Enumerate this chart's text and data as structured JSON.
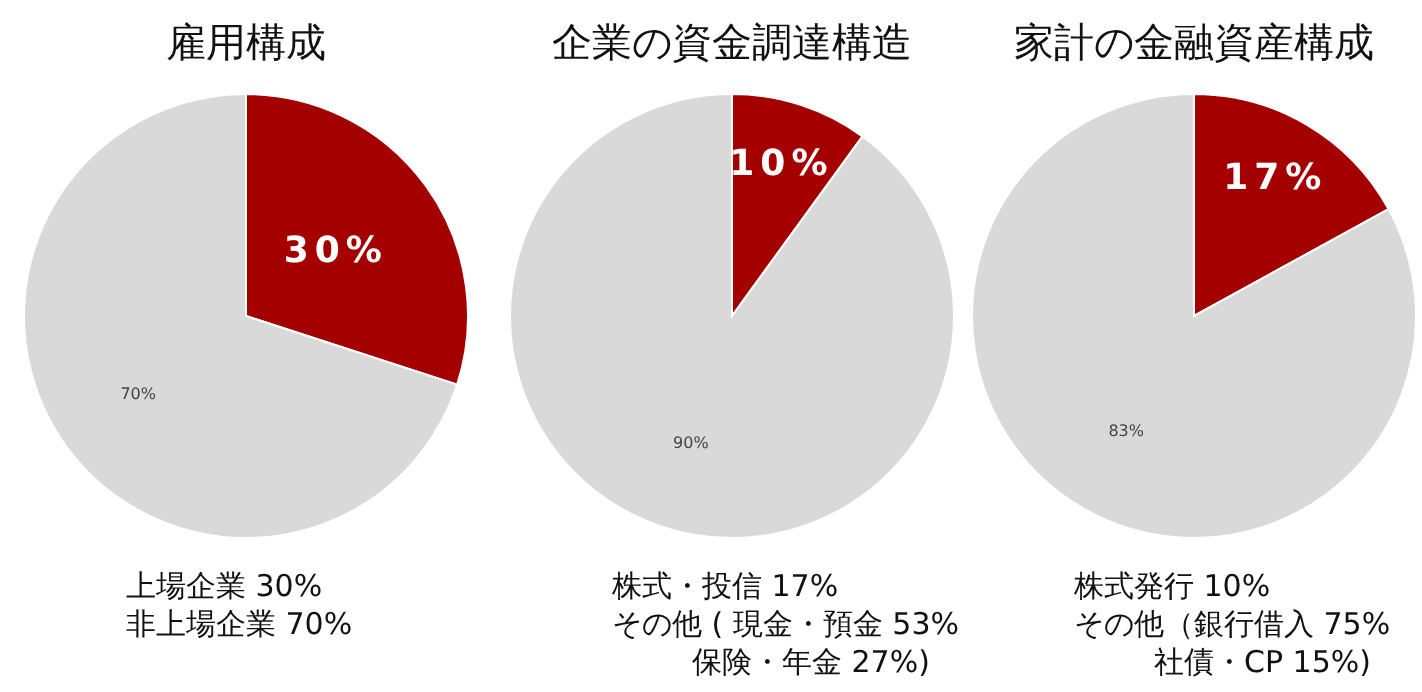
{
  "chart_data": [
    {
      "type": "pie",
      "title": "雇用構成",
      "categories": [
        null,
        null
      ],
      "values": [
        30,
        70
      ],
      "colors": [
        "#a50000",
        "#d9d9d9"
      ],
      "value_labels": [
        "30%",
        "70%"
      ],
      "annotations": [
        "上場企業 30%",
        "非上場企業 70%"
      ]
    },
    {
      "type": "pie",
      "title": "企業の資金調達構造",
      "categories": [
        null,
        null
      ],
      "values": [
        10,
        90
      ],
      "colors": [
        "#a50000",
        "#d9d9d9"
      ],
      "value_labels": [
        "10%",
        "90%"
      ],
      "annotations": [
        "株式・投信 17%",
        "その他 ( 現金・預金 53%",
        "保険・年金 27%)"
      ]
    },
    {
      "type": "pie",
      "title": "家計の金融資産構成",
      "categories": [
        null,
        null
      ],
      "values": [
        17,
        83
      ],
      "colors": [
        "#a50000",
        "#d9d9d9"
      ],
      "value_labels": [
        "17%",
        "83%"
      ],
      "annotations": [
        "株式発行 10%",
        "その他（銀行借入 75%",
        "社債・CP 15%)"
      ]
    }
  ]
}
